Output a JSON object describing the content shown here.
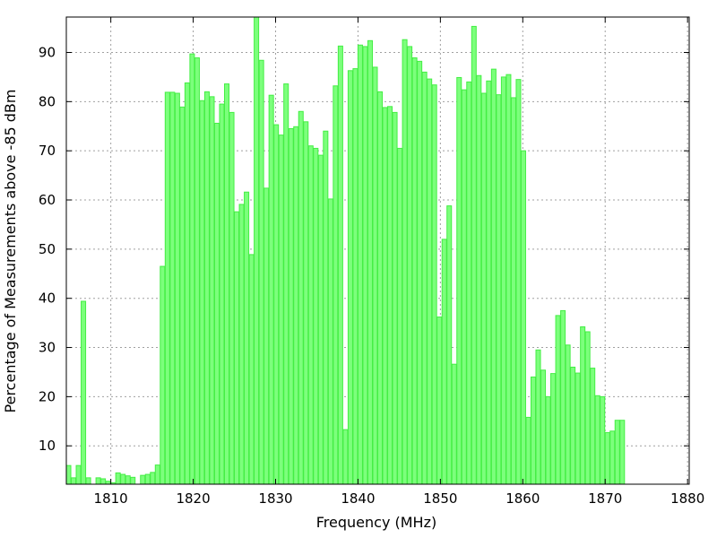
{
  "chart_data": {
    "type": "bar",
    "title": "",
    "xlabel": "Frequency (MHz)",
    "ylabel": "Percentage of Measurements above -85 dBm",
    "xlim": [
      1804.6,
      1880.2
    ],
    "ylim": [
      2.2,
      97.2
    ],
    "xticks": [
      1810,
      1820,
      1830,
      1840,
      1850,
      1860,
      1870,
      1880
    ],
    "yticks": [
      10,
      20,
      30,
      40,
      50,
      60,
      70,
      80,
      90
    ],
    "grid": true,
    "bar_color": "#7cff7c",
    "bar_edge_color": "#44ee44",
    "bar_width": 0.6,
    "x_start": 1804.6,
    "x_step": 0.6,
    "values": [
      6.0,
      3.5,
      6.0,
      39.4,
      3.5,
      2.2,
      3.5,
      3.3,
      2.8,
      2.5,
      4.5,
      4.2,
      3.9,
      3.6,
      2.2,
      4.0,
      4.2,
      4.6,
      6.1,
      46.5,
      81.9,
      81.9,
      81.7,
      78.9,
      83.8,
      89.7,
      88.9,
      80.2,
      82.0,
      81.0,
      75.6,
      79.5,
      83.6,
      77.8,
      57.6,
      59.1,
      61.6,
      48.9,
      97.2,
      88.4,
      62.4,
      81.3,
      75.3,
      73.2,
      83.6,
      74.5,
      74.9,
      78.0,
      75.9,
      71.0,
      70.5,
      69.1,
      74.0,
      60.2,
      83.2,
      91.3,
      13.3,
      86.3,
      86.7,
      91.5,
      91.2,
      92.4,
      87.0,
      82.0,
      78.8,
      79.0,
      77.8,
      70.5,
      92.6,
      91.2,
      88.9,
      88.2,
      86.0,
      84.6,
      83.4,
      36.2,
      52.0,
      58.8,
      26.6,
      84.9,
      82.4,
      84.0,
      95.3,
      85.3,
      81.7,
      84.2,
      86.6,
      81.4,
      85.0,
      85.5,
      80.8,
      84.5,
      70.0,
      15.8,
      24.0,
      29.5,
      25.4,
      20.0,
      24.7,
      36.5,
      37.5,
      30.5,
      26.0,
      24.8,
      34.2,
      33.2,
      25.8,
      20.2,
      20.0,
      12.7,
      13.0,
      15.2,
      15.2
    ]
  }
}
